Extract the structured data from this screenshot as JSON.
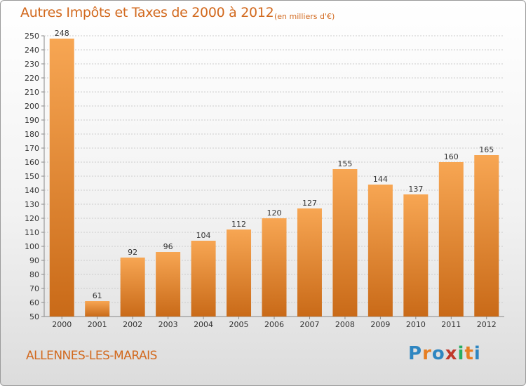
{
  "header": {
    "title": "Autres Impôts et Taxes de 2000 à 2012",
    "subtitle": "(en milliers d'€)"
  },
  "footer": {
    "place": "ALLENNES-LES-MARAIS",
    "logo_letters": [
      "P",
      "r",
      "o",
      "x",
      "i",
      "t",
      "i"
    ],
    "logo_colors": [
      "#2e86c1",
      "#e67e22",
      "#2e86c1",
      "#c0392b",
      "#27ae60",
      "#e67e22",
      "#2e86c1"
    ]
  },
  "colors": {
    "bar_light": "#f7a653",
    "bar_dark": "#c96a18",
    "text_accent": "#d2691e",
    "grid": "#cccccc",
    "axis": "#888888"
  },
  "chart_data": {
    "type": "bar",
    "title": "Autres Impôts et Taxes de 2000 à 2012",
    "subtitle": "(en milliers d'€)",
    "xlabel": "",
    "ylabel": "",
    "categories": [
      "2000",
      "2001",
      "2002",
      "2003",
      "2004",
      "2005",
      "2006",
      "2007",
      "2008",
      "2009",
      "2010",
      "2011",
      "2012"
    ],
    "values": [
      248,
      61,
      92,
      96,
      104,
      112,
      120,
      127,
      155,
      144,
      137,
      160,
      165
    ],
    "ylim": [
      50,
      250
    ],
    "ytick_step": 10,
    "grid": true,
    "legend": "none"
  }
}
